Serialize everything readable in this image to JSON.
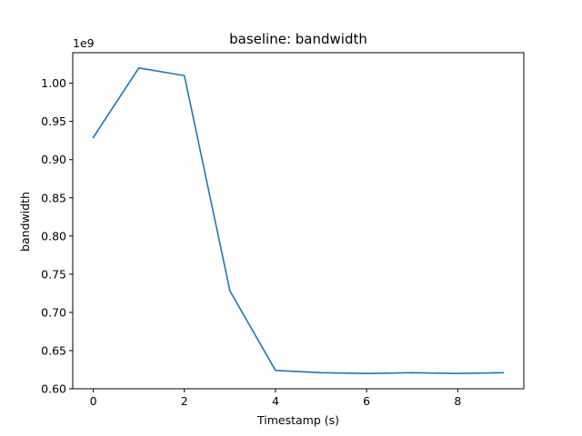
{
  "chart_data": {
    "type": "line",
    "title": "baseline: bandwidth",
    "xlabel": "Timestamp (s)",
    "ylabel": "bandwidth",
    "offset_label": "1e9",
    "xlim": [
      -0.45,
      9.45
    ],
    "ylim": [
      0.6,
      1.04
    ],
    "x_ticks": [
      0,
      2,
      4,
      6,
      8
    ],
    "x_tick_labels": [
      "0",
      "2",
      "4",
      "6",
      "8"
    ],
    "y_ticks": [
      0.6,
      0.65,
      0.7,
      0.75,
      0.8,
      0.85,
      0.9,
      0.95,
      1.0
    ],
    "y_tick_labels": [
      "0.60",
      "0.65",
      "0.70",
      "0.75",
      "0.80",
      "0.85",
      "0.90",
      "0.95",
      "1.00"
    ],
    "grid": false,
    "series": [
      {
        "color": "#1f77b4",
        "x": [
          0,
          1,
          2,
          3,
          4,
          5,
          6,
          7,
          8,
          9
        ],
        "y": [
          0.929,
          1.02,
          1.01,
          0.728,
          0.624,
          0.621,
          0.62,
          0.621,
          0.62,
          0.621
        ]
      }
    ]
  }
}
